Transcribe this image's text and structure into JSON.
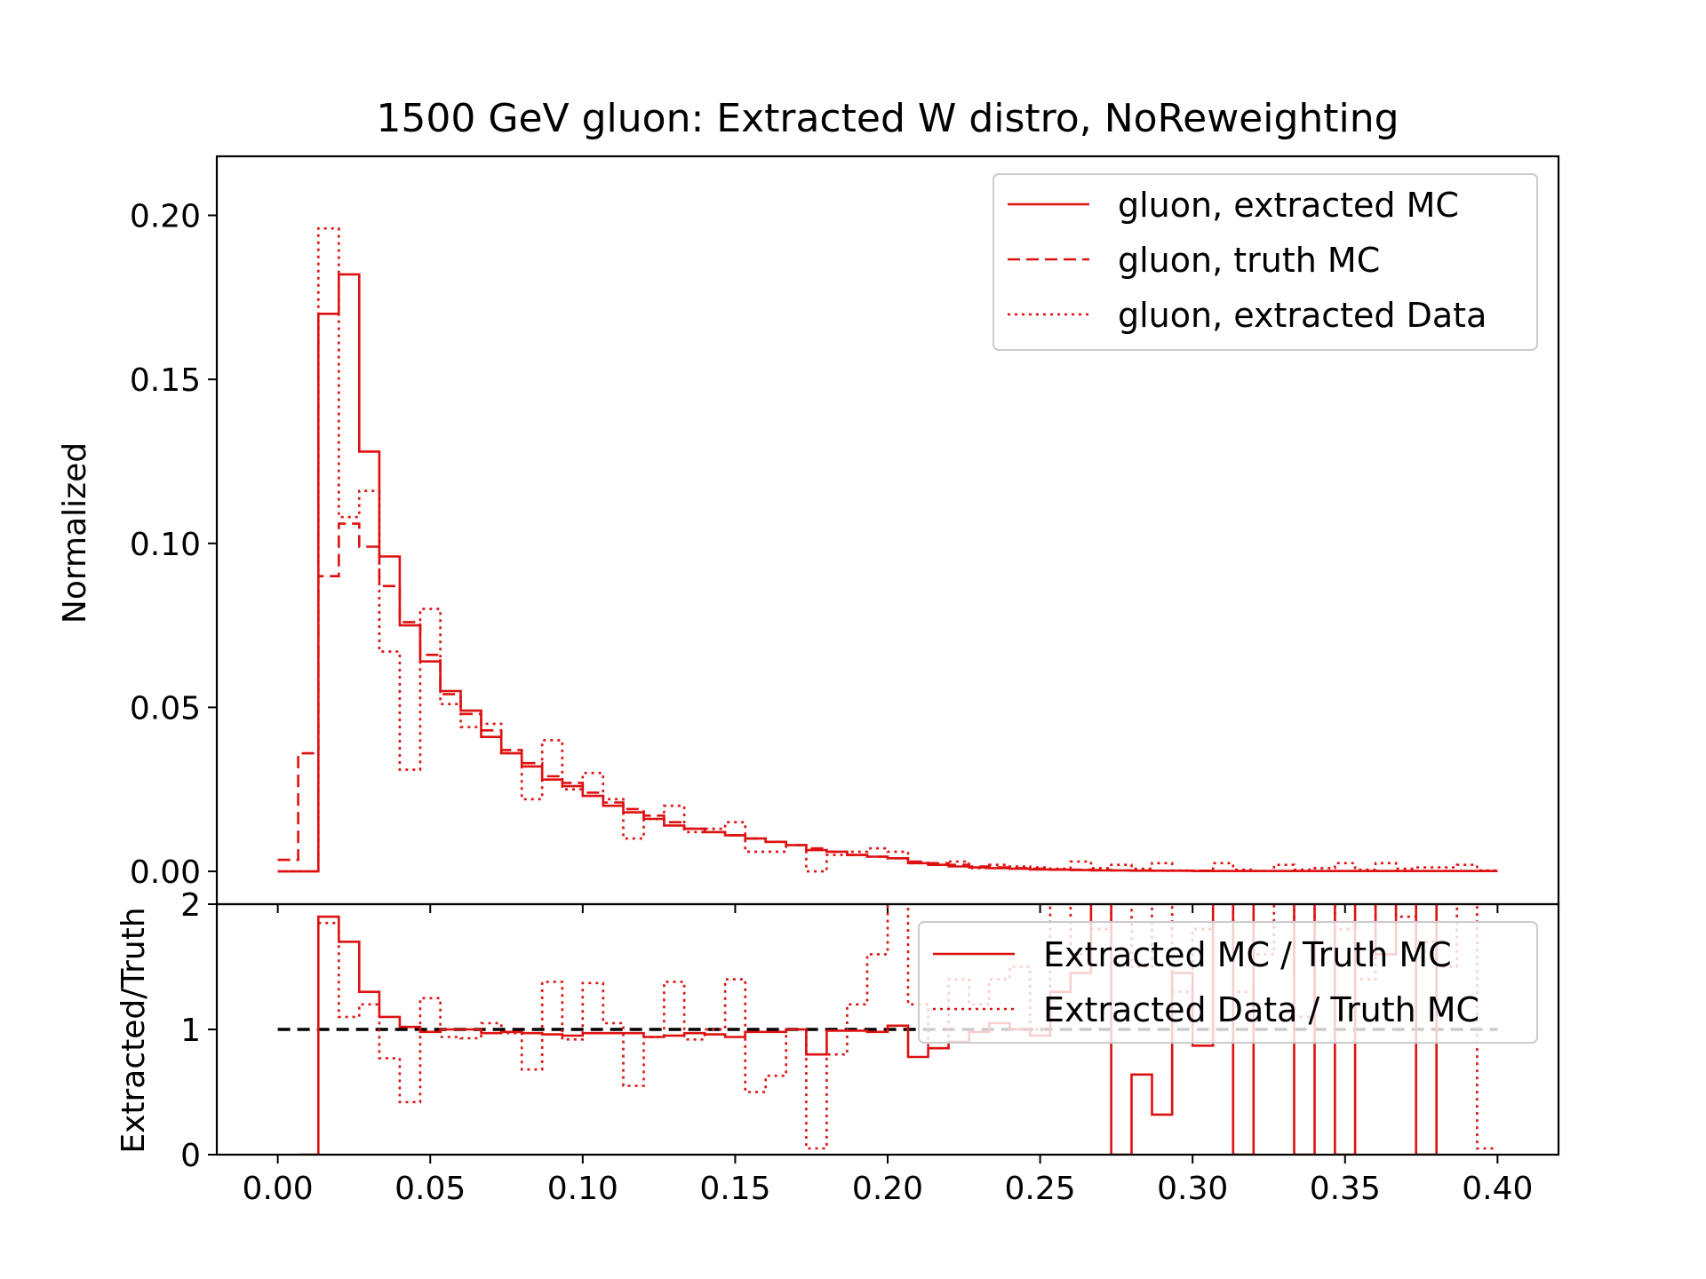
{
  "chart_data": [
    {
      "panel": "main",
      "type": "line",
      "drawstyle": "steps",
      "title": "1500 GeV gluon: Extracted W distro, NoReweighting",
      "xlabel": "",
      "ylabel": "Normalized",
      "xlim": [
        -0.02,
        0.42
      ],
      "ylim": [
        -0.01,
        0.218
      ],
      "xticks": [
        0.0,
        0.05,
        0.1,
        0.15,
        0.2,
        0.25,
        0.3,
        0.35,
        0.4
      ],
      "xtick_labels": [
        "0.00",
        "0.05",
        "0.10",
        "0.15",
        "0.20",
        "0.25",
        "0.30",
        "0.35",
        "0.40"
      ],
      "yticks": [
        0.0,
        0.05,
        0.1,
        0.15,
        0.2
      ],
      "ytick_labels": [
        "0.00",
        "0.05",
        "0.10",
        "0.15",
        "0.20"
      ],
      "legend_position": "upper right",
      "bin_edges": [
        0.0,
        0.0067,
        0.0133,
        0.02,
        0.0267,
        0.0333,
        0.04,
        0.0467,
        0.0533,
        0.06,
        0.0667,
        0.0733,
        0.08,
        0.0867,
        0.0933,
        0.1,
        0.1067,
        0.1133,
        0.12,
        0.1267,
        0.1333,
        0.14,
        0.1467,
        0.1533,
        0.16,
        0.1667,
        0.1733,
        0.18,
        0.1867,
        0.1933,
        0.2,
        0.2067,
        0.2133,
        0.22,
        0.2267,
        0.2333,
        0.24,
        0.2467,
        0.2533,
        0.26,
        0.2667,
        0.2733,
        0.28,
        0.2867,
        0.2933,
        0.3,
        0.3067,
        0.3133,
        0.32,
        0.3267,
        0.3333,
        0.34,
        0.3467,
        0.3533,
        0.36,
        0.3667,
        0.3733,
        0.38,
        0.3867,
        0.3933,
        0.4
      ],
      "series": [
        {
          "name": "gluon, extracted MC",
          "style": "solid",
          "color": "#dd1111",
          "values": [
            0.0,
            0.0,
            0.17,
            0.182,
            0.128,
            0.096,
            0.075,
            0.064,
            0.055,
            0.049,
            0.041,
            0.036,
            0.032,
            0.028,
            0.026,
            0.023,
            0.02,
            0.018,
            0.016,
            0.014,
            0.013,
            0.012,
            0.011,
            0.01,
            0.009,
            0.008,
            0.0065,
            0.006,
            0.005,
            0.0045,
            0.004,
            0.0025,
            0.002,
            0.0015,
            0.0012,
            0.001,
            0.0008,
            0.0006,
            0.0005,
            0.0004,
            0.0003,
            0.0003,
            0.0002,
            0.0002,
            0.0002,
            0.0001,
            0.0001,
            0.0001,
            0.0001,
            0.0001,
            0.0001,
            0.0001,
            0.0001,
            0.0001,
            0.0001,
            0.0001,
            0.0001,
            0.0001,
            0.0001,
            0.0001
          ]
        },
        {
          "name": "gluon, truth MC",
          "style": "dashed",
          "color": "#dd1111",
          "values": [
            0.0035,
            0.036,
            0.09,
            0.106,
            0.099,
            0.087,
            0.076,
            0.066,
            0.054,
            0.048,
            0.043,
            0.037,
            0.033,
            0.029,
            0.027,
            0.024,
            0.021,
            0.019,
            0.017,
            0.015,
            0.013,
            0.012,
            0.011,
            0.01,
            0.009,
            0.008,
            0.007,
            0.006,
            0.005,
            0.0045,
            0.004,
            0.003,
            0.0025,
            0.002,
            0.0015,
            0.0012,
            0.001,
            0.0008,
            0.0006,
            0.0005,
            0.0004,
            0.0003,
            0.0003,
            0.0002,
            0.0002,
            0.0002,
            0.0001,
            0.0001,
            0.0001,
            0.0001,
            0.0001,
            0.0001,
            0.0001,
            0.0001,
            0.0001,
            0.0001,
            0.0001,
            0.0001,
            0.0001,
            0.0001
          ]
        },
        {
          "name": "gluon, extracted Data",
          "style": "dotted",
          "color": "#dd1111",
          "values": [
            0.0,
            0.0,
            0.196,
            0.108,
            0.116,
            0.067,
            0.031,
            0.08,
            0.051,
            0.044,
            0.045,
            0.036,
            0.022,
            0.04,
            0.025,
            0.03,
            0.022,
            0.01,
            0.016,
            0.02,
            0.012,
            0.013,
            0.015,
            0.006,
            0.006,
            0.008,
            0.0,
            0.005,
            0.006,
            0.007,
            0.006,
            0.0025,
            0.002,
            0.003,
            0.001,
            0.002,
            0.0015,
            0.0012,
            0.0008,
            0.003,
            0.001,
            0.002,
            0.0008,
            0.0025,
            0.0003,
            0.0002,
            0.0025,
            0.0005,
            0.0001,
            0.002,
            0.0005,
            0.001,
            0.0025,
            0.0005,
            0.0025,
            0.0008,
            0.0012,
            0.0012,
            0.002,
            0.0003
          ]
        }
      ]
    },
    {
      "panel": "ratio",
      "type": "line",
      "drawstyle": "steps",
      "xlabel": "",
      "ylabel": "Extracted/Truth",
      "xlim": [
        -0.02,
        0.42
      ],
      "ylim": [
        0,
        2
      ],
      "xticks": [
        0.0,
        0.05,
        0.1,
        0.15,
        0.2,
        0.25,
        0.3,
        0.35,
        0.4
      ],
      "xtick_labels": [
        "0.00",
        "0.05",
        "0.10",
        "0.15",
        "0.20",
        "0.25",
        "0.30",
        "0.35",
        "0.40"
      ],
      "yticks": [
        0,
        1,
        2
      ],
      "ytick_labels": [
        "0",
        "1",
        "2"
      ],
      "legend_position": "upper right",
      "reference_line": 1,
      "bin_edges": [
        0.0,
        0.0067,
        0.0133,
        0.02,
        0.0267,
        0.0333,
        0.04,
        0.0467,
        0.0533,
        0.06,
        0.0667,
        0.0733,
        0.08,
        0.0867,
        0.0933,
        0.1,
        0.1067,
        0.1133,
        0.12,
        0.1267,
        0.1333,
        0.14,
        0.1467,
        0.1533,
        0.16,
        0.1667,
        0.1733,
        0.18,
        0.1867,
        0.1933,
        0.2,
        0.2067,
        0.2133,
        0.22,
        0.2267,
        0.2333,
        0.24,
        0.2467,
        0.2533,
        0.26,
        0.2667,
        0.2733,
        0.28,
        0.2867,
        0.2933,
        0.3,
        0.3067,
        0.3133,
        0.32,
        0.3267,
        0.3333,
        0.34,
        0.3467,
        0.3533,
        0.36,
        0.3667,
        0.3733,
        0.38,
        0.3867,
        0.3933,
        0.4
      ],
      "series": [
        {
          "name": "Extracted MC / Truth MC",
          "style": "solid",
          "color": "#dd1111",
          "values": [
            null,
            0.0,
            1.9,
            1.7,
            1.3,
            1.1,
            1.02,
            0.98,
            1.0,
            1.0,
            0.97,
            0.98,
            0.97,
            0.96,
            0.95,
            0.97,
            0.97,
            0.97,
            0.94,
            0.95,
            0.97,
            0.96,
            0.94,
            0.98,
            0.98,
            1.0,
            0.8,
            0.99,
            0.99,
            0.98,
            1.03,
            0.78,
            0.85,
            0.9,
            0.98,
            1.05,
            1.0,
            0.95,
            1.3,
            1.45,
            2.2,
            0.0,
            0.64,
            0.32,
            1.45,
            0.87,
            2.2,
            0.0,
            2.2,
            2.2,
            0.0,
            2.2,
            0.0,
            2.2,
            1.6,
            2.2,
            0.0,
            2.2,
            2.2,
            2.2
          ]
        },
        {
          "name": "Extracted Data / Truth MC",
          "style": "dotted",
          "color": "#dd1111",
          "values": [
            null,
            null,
            1.85,
            1.1,
            1.2,
            0.77,
            0.42,
            1.25,
            0.94,
            0.93,
            1.05,
            0.97,
            0.68,
            1.38,
            0.92,
            1.37,
            1.05,
            0.55,
            0.94,
            1.38,
            0.92,
            1.0,
            1.4,
            0.5,
            0.63,
            1.0,
            0.05,
            0.8,
            1.2,
            1.6,
            2.2,
            1.2,
            0.85,
            1.4,
            1.2,
            1.4,
            1.5,
            1.0,
            2.2,
            1.6,
            1.8,
            2.2,
            1.5,
            2.2,
            1.3,
            1.8,
            2.2,
            1.3,
            1.6,
            2.2,
            1.1,
            2.2,
            1.8,
            1.4,
            2.2,
            1.9,
            1.7,
            1.5,
            2.2,
            0.05
          ]
        }
      ]
    }
  ]
}
